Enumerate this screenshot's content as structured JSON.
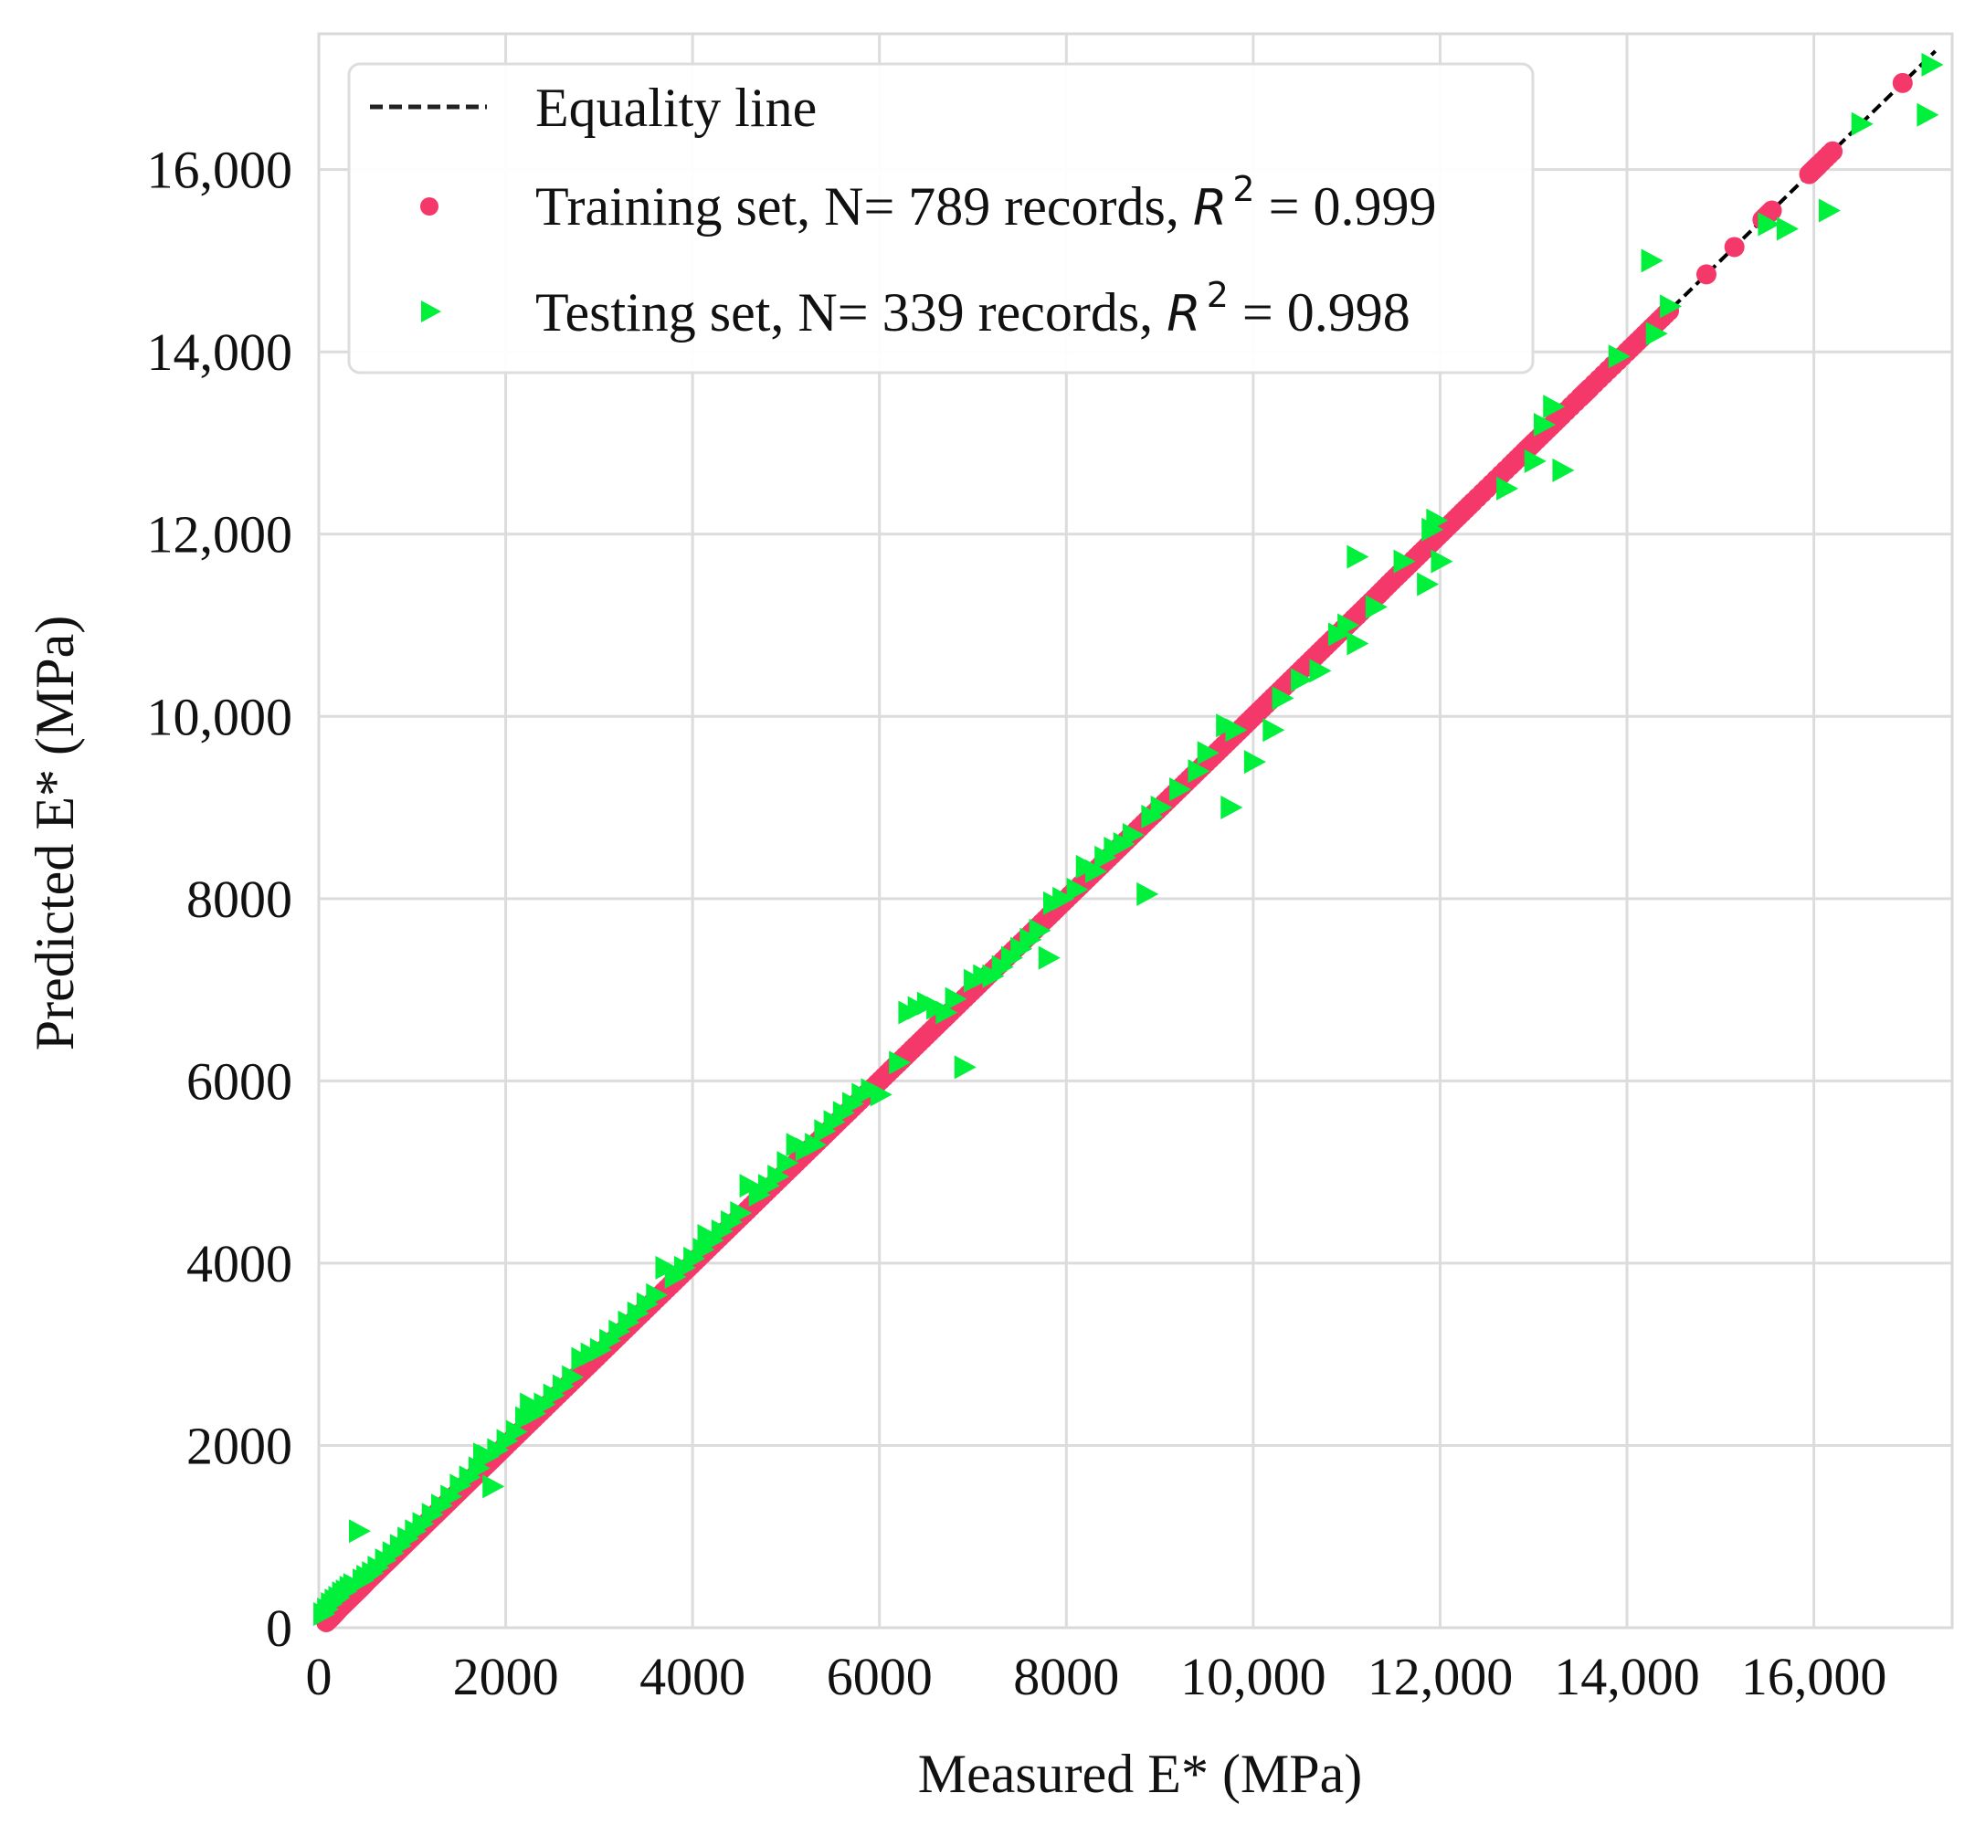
{
  "chart_data": {
    "type": "scatter",
    "title": "",
    "xlabel": "Measured E* (MPa)",
    "ylabel": "Predicted E* (MPa)",
    "xlim": [
      0,
      17480
    ],
    "ylim": [
      0,
      17490
    ],
    "grid": true,
    "legend_position": "upper left",
    "x_ticks": [
      0,
      2000,
      4000,
      6000,
      8000,
      10000,
      12000,
      14000,
      16000
    ],
    "x_tick_labels": [
      "0",
      "2000",
      "4000",
      "6000",
      "8000",
      "10,000",
      "12,000",
      "14,000",
      "16,000"
    ],
    "y_ticks": [
      0,
      2000,
      4000,
      6000,
      8000,
      10000,
      12000,
      14000,
      16000
    ],
    "y_tick_labels": [
      "0",
      "2000",
      "4000",
      "6000",
      "8000",
      "10,000",
      "12,000",
      "14,000",
      "16,000"
    ],
    "series": [
      {
        "name": "Equality line",
        "type": "line",
        "style": "dashed",
        "color": "#000000",
        "x": [
          0,
          17300
        ],
        "y": [
          0,
          17300
        ]
      },
      {
        "name": "Training set",
        "type": "scatter",
        "marker": "circle",
        "color": "#F5386A",
        "n_records": 789,
        "r2": 0.999,
        "x": [
          80,
          150,
          220,
          300,
          380,
          450,
          520,
          600,
          680,
          760,
          840,
          920,
          1000,
          1100,
          1200,
          1300,
          1400,
          1500,
          1600,
          1700,
          1800,
          1900,
          2000,
          2150,
          2300,
          2450,
          2600,
          2750,
          2900,
          3050,
          3200,
          3350,
          3500,
          3650,
          3800,
          3950,
          4100,
          4250,
          4400,
          4550,
          4700,
          4850,
          5000,
          5150,
          5300,
          5450,
          5600,
          5750,
          5900,
          6050,
          6200,
          6350,
          6500,
          6650,
          6800,
          6950,
          7100,
          7250,
          7400,
          7550,
          7700,
          7850,
          8000,
          8150,
          8300,
          8450,
          8600,
          8750,
          8900,
          9050,
          9200,
          9350,
          9500,
          9650,
          9800,
          9950,
          10100,
          10250,
          10400,
          10550,
          10700,
          10850,
          11000,
          11150,
          11300,
          11450,
          11600,
          11750,
          11900,
          12050,
          12200,
          12350,
          12550,
          12750,
          12900,
          13000,
          13150,
          13300,
          13500,
          13600,
          13800,
          14000,
          14150,
          14300,
          14450,
          14850,
          15150,
          15450,
          15550,
          15950,
          16000,
          16050,
          16200,
          16950
        ],
        "y": [
          60,
          130,
          210,
          290,
          370,
          440,
          515,
          595,
          675,
          755,
          835,
          915,
          995,
          1095,
          1195,
          1295,
          1395,
          1495,
          1595,
          1695,
          1795,
          1895,
          1995,
          2145,
          2295,
          2445,
          2595,
          2745,
          2895,
          3045,
          3195,
          3345,
          3495,
          3645,
          3795,
          3945,
          4095,
          4245,
          4395,
          4545,
          4695,
          4845,
          4995,
          5145,
          5295,
          5445,
          5595,
          5745,
          5895,
          6045,
          6195,
          6345,
          6495,
          6645,
          6795,
          6945,
          7095,
          7245,
          7395,
          7545,
          7695,
          7845,
          7995,
          8145,
          8295,
          8445,
          8595,
          8745,
          8895,
          9045,
          9195,
          9345,
          9495,
          9645,
          9795,
          9945,
          10095,
          10245,
          10395,
          10545,
          10695,
          10845,
          10995,
          11145,
          11295,
          11450,
          11600,
          11750,
          11900,
          12050,
          12200,
          12350,
          12550,
          12750,
          12900,
          13000,
          13150,
          13300,
          13500,
          13600,
          13800,
          14000,
          14150,
          14300,
          14450,
          14850,
          15150,
          15450,
          15550,
          15950,
          16000,
          16050,
          16200,
          16950
        ]
      },
      {
        "name": "Testing set",
        "type": "scatter",
        "marker": "triangle-right",
        "color": "#00F03C",
        "n_records": 339,
        "r2": 0.998,
        "x": [
          40,
          80,
          120,
          160,
          200,
          240,
          280,
          320,
          360,
          420,
          460,
          500,
          560,
          620,
          700,
          780,
          860,
          940,
          1020,
          1100,
          1200,
          1300,
          1400,
          1500,
          1600,
          1700,
          1750,
          1800,
          1850,
          1900,
          2000,
          2100,
          2200,
          2250,
          2300,
          2400,
          2500,
          2600,
          2700,
          2800,
          2900,
          3000,
          3100,
          3200,
          3300,
          3400,
          3500,
          3600,
          3700,
          3800,
          3900,
          4000,
          4100,
          4150,
          4200,
          4300,
          4400,
          4500,
          4600,
          4700,
          4800,
          4900,
          5000,
          5100,
          5200,
          5300,
          5400,
          5500,
          5600,
          5700,
          5800,
          5900,
          6000,
          6200,
          6300,
          6400,
          6500,
          6600,
          6700,
          6800,
          6900,
          7000,
          7100,
          7200,
          7300,
          7400,
          7500,
          7600,
          7700,
          7800,
          7850,
          7950,
          8100,
          8200,
          8300,
          8400,
          8500,
          8600,
          8700,
          8850,
          8900,
          9000,
          9200,
          9400,
          9500,
          9700,
          9750,
          9800,
          10000,
          10200,
          10300,
          10500,
          10700,
          10900,
          11000,
          11100,
          11100,
          11300,
          11600,
          11850,
          11900,
          11950,
          12000,
          12700,
          13000,
          13100,
          13200,
          13300,
          13900,
          14250,
          14300,
          14450,
          15500,
          15700,
          16150,
          16500,
          17200,
          17250
        ],
        "y": [
          150,
          200,
          260,
          300,
          330,
          380,
          400,
          440,
          470,
          1060,
          520,
          560,
          600,
          660,
          740,
          820,
          900,
          980,
          1060,
          1140,
          1240,
          1340,
          1440,
          1560,
          1650,
          1750,
          1900,
          1880,
          1550,
          1950,
          2050,
          2150,
          2300,
          2450,
          2350,
          2450,
          2550,
          2650,
          2750,
          2950,
          3000,
          3050,
          3150,
          3250,
          3350,
          3450,
          3550,
          3650,
          3950,
          3850,
          3950,
          4050,
          4150,
          4300,
          4250,
          4350,
          4450,
          4550,
          4850,
          4750,
          4850,
          4950,
          5100,
          5300,
          5250,
          5300,
          5450,
          5550,
          5650,
          5750,
          5850,
          5900,
          5850,
          6200,
          6750,
          6800,
          6850,
          6800,
          6750,
          6900,
          6150,
          7100,
          7150,
          7150,
          7250,
          7350,
          7450,
          7550,
          7650,
          7350,
          7950,
          8000,
          8100,
          8350,
          8300,
          8450,
          8550,
          8600,
          8700,
          8050,
          8900,
          9000,
          9200,
          9400,
          9600,
          9900,
          9000,
          9850,
          9500,
          9850,
          10200,
          10400,
          10500,
          10900,
          11000,
          10800,
          11750,
          11200,
          11700,
          11450,
          12050,
          12150,
          11700,
          12500,
          12800,
          13200,
          13400,
          12700,
          13950,
          15000,
          14200,
          14500,
          15400,
          15350,
          15550,
          16500,
          16600,
          17150
        ]
      }
    ]
  },
  "legend": {
    "items": [
      {
        "label": "Equality line",
        "marker": "dashed-line"
      },
      {
        "prefix": "Training set, N= 789 records, ",
        "r_symbol": "R",
        "sup": "2",
        "suffix": " = 0.999",
        "marker": "circle"
      },
      {
        "prefix": "Testing set, N= 339 records, ",
        "r_symbol": "R",
        "sup": "2",
        "suffix": " = 0.998",
        "marker": "triangle-right"
      }
    ]
  },
  "colors": {
    "training": "#F5386A",
    "testing": "#00F03C",
    "equality": "#000000",
    "grid": "#DCDCDC",
    "frame": "#D9D9D9"
  }
}
